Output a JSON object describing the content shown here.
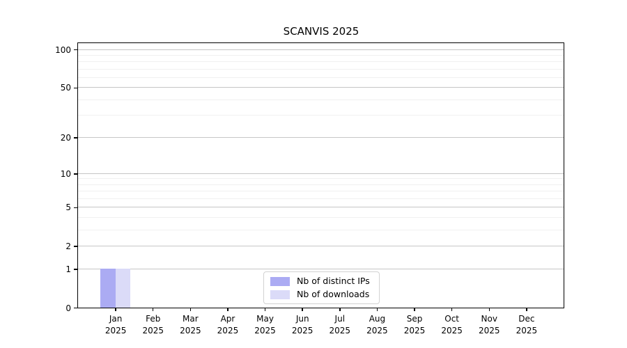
{
  "chart_data": {
    "type": "bar",
    "title": "SCANVIS 2025",
    "categories": [
      "Jan",
      "Feb",
      "Mar",
      "Apr",
      "May",
      "Jun",
      "Jul",
      "Aug",
      "Sep",
      "Oct",
      "Nov",
      "Dec"
    ],
    "category_year": "2025",
    "series": [
      {
        "name": "Nb of distinct IPs",
        "color": "#ababf3",
        "values": [
          1,
          0,
          0,
          0,
          0,
          0,
          0,
          0,
          0,
          0,
          0,
          0
        ]
      },
      {
        "name": "Nb of downloads",
        "color": "#dbdbf8",
        "values": [
          1,
          0,
          0,
          0,
          0,
          0,
          0,
          0,
          0,
          0,
          0,
          0
        ]
      }
    ],
    "y_axis": {
      "scale": "log1p",
      "major_ticks": [
        0,
        1,
        2,
        5,
        10,
        20,
        50,
        100
      ],
      "minor_gridlines": [
        3,
        4,
        6,
        7,
        8,
        9,
        30,
        40,
        60,
        70,
        80,
        90
      ],
      "top_value": 112
    },
    "x_axis": {
      "slots": 13
    },
    "grid": {
      "major_color": "#c6c6c6",
      "minor_color": "#f0f0f0"
    },
    "legend": {
      "position": "lower center"
    },
    "colors": {
      "spine": "#000000",
      "background": "#ffffff"
    }
  }
}
